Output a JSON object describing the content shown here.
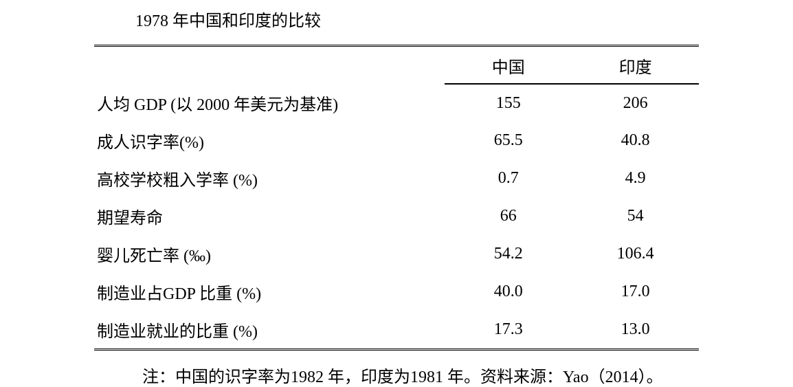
{
  "title": "1978 年中国和印度的比较",
  "table": {
    "columns": [
      "中国",
      "印度"
    ],
    "rows": [
      {
        "label": "人均 GDP (以 2000 年美元为基准)",
        "china": "155",
        "india": "206"
      },
      {
        "label": "成人识字率(%)",
        "china": "65.5",
        "india": "40.8"
      },
      {
        "label": "高校学校粗入学率 (%)",
        "china": "0.7",
        "india": "4.9"
      },
      {
        "label": "期望寿命",
        "china": "66",
        "india": "54"
      },
      {
        "label": "婴儿死亡率 (‰)",
        "china": "54.2",
        "india": "106.4"
      },
      {
        "label": "制造业占GDP 比重  (%)",
        "china": "40.0",
        "india": "17.0"
      },
      {
        "label": "制造业就业的比重 (%)",
        "china": "17.3",
        "india": "13.0"
      }
    ],
    "col_widths_pct": [
      58,
      21,
      21
    ],
    "font_size_pt": 24,
    "border_color": "#000000",
    "background_color": "#ffffff",
    "text_color": "#000000"
  },
  "footnote": "注：中国的识字率为1982 年，印度为1981 年。资料来源：Yao（2014）。"
}
